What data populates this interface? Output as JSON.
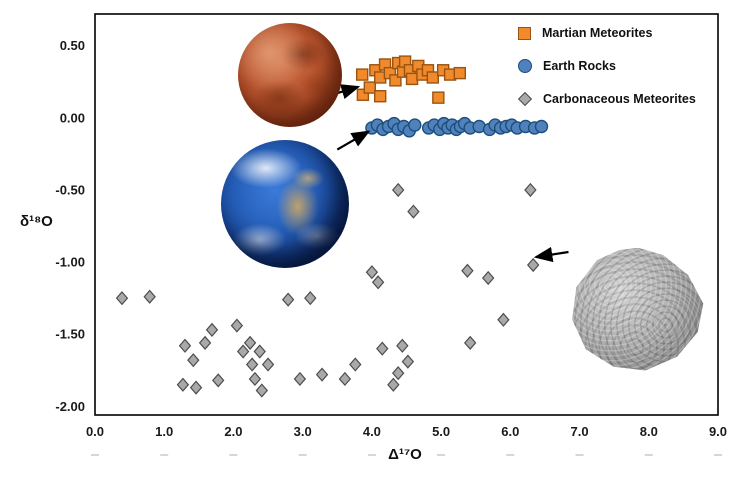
{
  "chart_data": {
    "type": "scatter",
    "title": "",
    "xlabel": "Δ¹⁷O",
    "ylabel": "δ¹⁸O",
    "xlim": [
      0.0,
      9.0
    ],
    "ylim": [
      -2.06,
      0.72
    ],
    "grid": false,
    "legend_position": "top-right-inside",
    "x_tick_values": [
      0,
      1,
      2,
      3,
      4,
      5,
      6,
      7,
      8,
      9
    ],
    "x_tick_labels": [
      "0.0",
      "1.0",
      "2.0",
      "3.0",
      "4.0",
      "5.0",
      "6.0",
      "7.0",
      "8.0",
      "9.0"
    ],
    "y_tick_values": [
      0.5,
      0.0,
      -0.5,
      -1.0,
      -1.5,
      -2.0
    ],
    "y_tick_labels": [
      "0.50",
      "0.00",
      "-0.50",
      "-1.00",
      "-1.50",
      "-2.00"
    ],
    "series": [
      {
        "name": "Martian Meteorites",
        "marker": "square",
        "fill": "#F08A2D",
        "edge": "#9A5410",
        "points": [
          [
            3.86,
            0.3
          ],
          [
            3.87,
            0.16
          ],
          [
            3.97,
            0.21
          ],
          [
            4.05,
            0.33
          ],
          [
            4.12,
            0.28
          ],
          [
            4.12,
            0.15
          ],
          [
            4.19,
            0.37
          ],
          [
            4.26,
            0.31
          ],
          [
            4.34,
            0.26
          ],
          [
            4.38,
            0.38
          ],
          [
            4.45,
            0.32
          ],
          [
            4.48,
            0.39
          ],
          [
            4.55,
            0.33
          ],
          [
            4.58,
            0.27
          ],
          [
            4.67,
            0.36
          ],
          [
            4.73,
            0.3
          ],
          [
            4.81,
            0.33
          ],
          [
            4.88,
            0.28
          ],
          [
            4.96,
            0.14
          ],
          [
            5.03,
            0.33
          ],
          [
            5.13,
            0.3
          ],
          [
            5.27,
            0.31
          ]
        ]
      },
      {
        "name": "Earth Rocks",
        "marker": "circle",
        "fill": "#4F81BD",
        "edge": "#1F4E79",
        "points": [
          [
            4.0,
            -0.07
          ],
          [
            4.08,
            -0.05
          ],
          [
            4.16,
            -0.08
          ],
          [
            4.24,
            -0.06
          ],
          [
            4.32,
            -0.04
          ],
          [
            4.38,
            -0.08
          ],
          [
            4.46,
            -0.06
          ],
          [
            4.54,
            -0.09
          ],
          [
            4.62,
            -0.05
          ],
          [
            4.82,
            -0.07
          ],
          [
            4.9,
            -0.05
          ],
          [
            4.98,
            -0.08
          ],
          [
            5.04,
            -0.04
          ],
          [
            5.1,
            -0.07
          ],
          [
            5.16,
            -0.05
          ],
          [
            5.22,
            -0.08
          ],
          [
            5.28,
            -0.06
          ],
          [
            5.34,
            -0.04
          ],
          [
            5.42,
            -0.07
          ],
          [
            5.55,
            -0.06
          ],
          [
            5.7,
            -0.08
          ],
          [
            5.78,
            -0.05
          ],
          [
            5.86,
            -0.07
          ],
          [
            5.94,
            -0.06
          ],
          [
            6.02,
            -0.05
          ],
          [
            6.1,
            -0.07
          ],
          [
            6.22,
            -0.06
          ],
          [
            6.35,
            -0.07
          ],
          [
            6.45,
            -0.06
          ]
        ]
      },
      {
        "name": "Carbonaceous Meteorites",
        "marker": "diamond",
        "fill": "#A9A9A9",
        "edge": "#4D4D4D",
        "points": [
          [
            0.39,
            -1.25
          ],
          [
            0.79,
            -1.24
          ],
          [
            1.27,
            -1.85
          ],
          [
            1.3,
            -1.58
          ],
          [
            1.42,
            -1.68
          ],
          [
            1.46,
            -1.87
          ],
          [
            1.59,
            -1.56
          ],
          [
            1.69,
            -1.47
          ],
          [
            1.78,
            -1.82
          ],
          [
            2.05,
            -1.44
          ],
          [
            2.14,
            -1.62
          ],
          [
            2.24,
            -1.56
          ],
          [
            2.27,
            -1.71
          ],
          [
            2.31,
            -1.81
          ],
          [
            2.38,
            -1.62
          ],
          [
            2.41,
            -1.89
          ],
          [
            2.5,
            -1.71
          ],
          [
            2.79,
            -1.26
          ],
          [
            2.96,
            -1.81
          ],
          [
            3.11,
            -1.25
          ],
          [
            3.28,
            -1.78
          ],
          [
            3.61,
            -1.81
          ],
          [
            3.76,
            -1.71
          ],
          [
            4.0,
            -1.07
          ],
          [
            4.09,
            -1.14
          ],
          [
            4.15,
            -1.6
          ],
          [
            4.31,
            -1.85
          ],
          [
            4.38,
            -1.77
          ],
          [
            4.38,
            -0.5
          ],
          [
            4.44,
            -1.58
          ],
          [
            4.52,
            -1.69
          ],
          [
            4.6,
            -0.65
          ],
          [
            5.38,
            -1.06
          ],
          [
            5.42,
            -1.56
          ],
          [
            5.68,
            -1.11
          ],
          [
            5.9,
            -1.4
          ],
          [
            6.29,
            -0.5
          ],
          [
            6.33,
            -1.02
          ]
        ]
      }
    ],
    "annotations": {
      "arrows": [
        {
          "name": "mars-arrow",
          "from": [
            3.42,
            0.16
          ],
          "to": [
            3.8,
            0.215
          ]
        },
        {
          "name": "earth-arrow",
          "from": [
            3.5,
            -0.22
          ],
          "to": [
            3.95,
            -0.095
          ]
        },
        {
          "name": "asteroid-arrow",
          "from": [
            6.84,
            -0.93
          ],
          "to": [
            6.37,
            -0.965
          ]
        }
      ],
      "illustrations": [
        {
          "name": "mars-image",
          "cx": 2.82,
          "cy": 0.3
        },
        {
          "name": "earth-image",
          "cx": 2.75,
          "cy": -0.6
        },
        {
          "name": "asteroid-image",
          "cx": 7.85,
          "cy": -1.33
        }
      ]
    }
  }
}
